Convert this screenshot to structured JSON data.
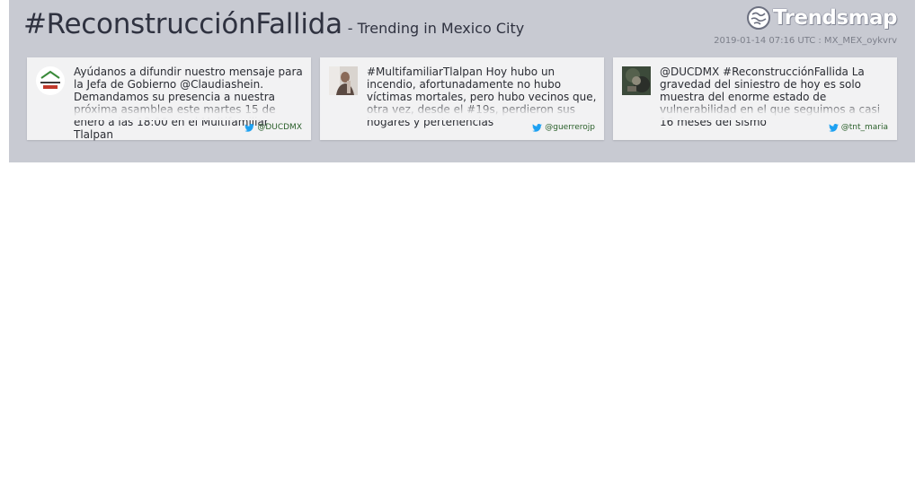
{
  "header": {
    "hashtag": "#ReconstrucciónFallida",
    "subtitle": "- Trending in Mexico City",
    "brand": "Trendsmap",
    "meta": "2019-01-14 07:16 UTC : MX_MEX_oykvrv"
  },
  "tweets": [
    {
      "text": "Ayúdanos a difundir nuestro mensaje para la Jefa de Gobierno @Claudiashein. Demandamos su presencia a nuestra próxima asamblea este martes 15 de enero a las 18:00 en el Multifamiliar Tlalpan",
      "handle": "@DUCDMX",
      "avatar_icon": "damnificados-logo-avatar"
    },
    {
      "text": "#MultifamiliarTlalpan Hoy hubo un incendio, afortunadamente no hubo víctimas mortales, pero hubo vecinos que, otra vez, desde el #19s, perdieron sus hogares y pertenencias",
      "handle": "@guerrerojp",
      "avatar_icon": "profile-photo-avatar"
    },
    {
      "text": "@DUCDMX #ReconstrucciónFallida La gravedad del siniestro de hoy es solo muestra del enorme estado de vulnerabilidad en el que seguimos a casi 16 meses del sismo",
      "handle": "@tnt_maria",
      "avatar_icon": "profile-photo-avatar"
    }
  ],
  "colors": {
    "banner": "#c8cad2",
    "card": "#f2f2f3",
    "handle": "#2a5f2a",
    "twitter_bird": "#1da1f2"
  }
}
